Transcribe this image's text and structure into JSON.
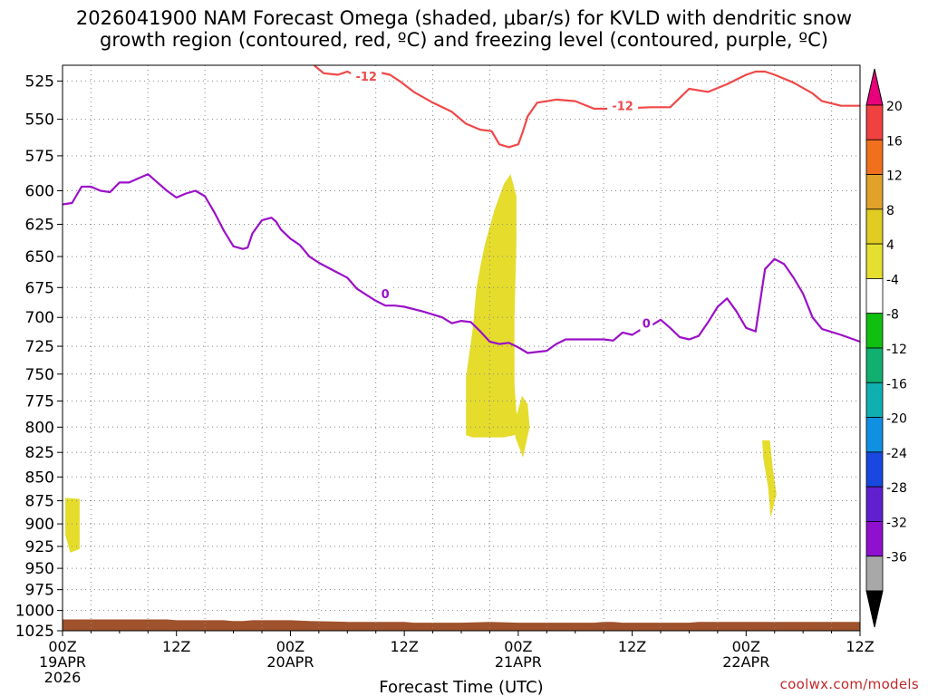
{
  "title_line1": "2026041900 NAM Forecast Omega (shaded, μbar/s) for KVLD with dendritic snow",
  "title_line2": "growth region (contoured, red, ºC) and freezing level (contoured, purple, ºC)",
  "credit": "coolwx.com/models",
  "chart_data": {
    "type": "line",
    "xlabel": "Forecast Time (UTC)",
    "x_unit": "forecast hour",
    "xlim": [
      0,
      84
    ],
    "ylim": [
      1025,
      515
    ],
    "y_scale": "log",
    "x_ticks": [
      {
        "hour": 0,
        "lines": [
          "00Z",
          "19APR",
          "2026"
        ]
      },
      {
        "hour": 12,
        "lines": [
          "12Z"
        ]
      },
      {
        "hour": 24,
        "lines": [
          "00Z",
          "20APR"
        ]
      },
      {
        "hour": 36,
        "lines": [
          "12Z"
        ]
      },
      {
        "hour": 48,
        "lines": [
          "00Z",
          "21APR"
        ]
      },
      {
        "hour": 60,
        "lines": [
          "12Z"
        ]
      },
      {
        "hour": 72,
        "lines": [
          "00Z",
          "22APR"
        ]
      },
      {
        "hour": 84,
        "lines": [
          "12Z"
        ]
      }
    ],
    "y_ticks": [
      525,
      550,
      575,
      600,
      625,
      650,
      675,
      700,
      725,
      750,
      775,
      800,
      825,
      850,
      875,
      900,
      925,
      950,
      975,
      1000,
      1025
    ],
    "grid": true,
    "series": [
      {
        "name": "-12",
        "color": "#f04848",
        "points": [
          [
            26.5,
            515
          ],
          [
            27.5,
            520
          ],
          [
            29,
            521
          ],
          [
            30,
            519
          ],
          [
            31,
            522
          ],
          [
            32,
            521
          ],
          [
            33,
            519
          ],
          [
            34.5,
            521
          ],
          [
            35.5,
            525
          ],
          [
            37,
            532
          ],
          [
            39,
            539
          ],
          [
            41,
            545
          ],
          [
            42.5,
            553
          ],
          [
            44,
            557
          ],
          [
            45.2,
            558
          ],
          [
            46,
            567
          ],
          [
            47,
            569
          ],
          [
            48,
            567
          ],
          [
            48.5,
            558
          ],
          [
            49,
            548
          ],
          [
            50,
            539
          ],
          [
            52,
            537
          ],
          [
            54,
            538
          ],
          [
            56,
            543
          ],
          [
            58,
            543
          ],
          [
            62,
            542
          ],
          [
            64,
            542
          ],
          [
            65,
            536
          ],
          [
            66,
            530
          ],
          [
            68,
            532
          ],
          [
            70,
            527
          ],
          [
            72,
            521
          ],
          [
            73,
            519
          ],
          [
            74,
            519
          ],
          [
            75,
            521
          ],
          [
            77,
            526
          ],
          [
            79,
            533
          ],
          [
            80,
            538
          ],
          [
            82,
            541
          ],
          [
            84,
            541
          ]
        ]
      },
      {
        "name": "0",
        "color": "#9b10c8",
        "points": [
          [
            0,
            610
          ],
          [
            1,
            609
          ],
          [
            2,
            597
          ],
          [
            3,
            597
          ],
          [
            4,
            600
          ],
          [
            5,
            601
          ],
          [
            6,
            594
          ],
          [
            7,
            594
          ],
          [
            8,
            591
          ],
          [
            9,
            588
          ],
          [
            10,
            594
          ],
          [
            11,
            600
          ],
          [
            12,
            605
          ],
          [
            13,
            602
          ],
          [
            14,
            600
          ],
          [
            15,
            604
          ],
          [
            16,
            616
          ],
          [
            17,
            630
          ],
          [
            18,
            642
          ],
          [
            19,
            644
          ],
          [
            19.5,
            643
          ],
          [
            20,
            632
          ],
          [
            21,
            622
          ],
          [
            22,
            620
          ],
          [
            22.5,
            623
          ],
          [
            23,
            629
          ],
          [
            24,
            636
          ],
          [
            25,
            641
          ],
          [
            26,
            650
          ],
          [
            27,
            655
          ],
          [
            28,
            659
          ],
          [
            29,
            663
          ],
          [
            30,
            667
          ],
          [
            31,
            676
          ],
          [
            32,
            681
          ],
          [
            33,
            686
          ],
          [
            34,
            690
          ],
          [
            35,
            690
          ],
          [
            36,
            691
          ],
          [
            38,
            695
          ],
          [
            40,
            700
          ],
          [
            41,
            705
          ],
          [
            42,
            703
          ],
          [
            43,
            704
          ],
          [
            44,
            712
          ],
          [
            45,
            721
          ],
          [
            46,
            723
          ],
          [
            47,
            722
          ],
          [
            48,
            726
          ],
          [
            49,
            731
          ],
          [
            51,
            729
          ],
          [
            52,
            723
          ],
          [
            53,
            719
          ],
          [
            55,
            719
          ],
          [
            57,
            719
          ],
          [
            58,
            720
          ],
          [
            59,
            713
          ],
          [
            60,
            715
          ],
          [
            61,
            710
          ],
          [
            62,
            707
          ],
          [
            63,
            702
          ],
          [
            64,
            709
          ],
          [
            65,
            717
          ],
          [
            66,
            719
          ],
          [
            67,
            716
          ],
          [
            68,
            704
          ],
          [
            69,
            691
          ],
          [
            70,
            684
          ],
          [
            71,
            695
          ],
          [
            72,
            709
          ],
          [
            73,
            712
          ],
          [
            74,
            660
          ],
          [
            75,
            652
          ],
          [
            76,
            656
          ],
          [
            77,
            667
          ],
          [
            78,
            680
          ],
          [
            79,
            700
          ],
          [
            80,
            710
          ],
          [
            82,
            715
          ],
          [
            84,
            721
          ]
        ]
      }
    ],
    "contour_labels": [
      {
        "text": "-12",
        "hour": 32,
        "pressure": 522
      },
      {
        "text": "-12",
        "hour": 59,
        "pressure": 541
      },
      {
        "text": "0",
        "hour": 34,
        "pressure": 680
      },
      {
        "text": "0",
        "hour": 61.5,
        "pressure": 705
      }
    ],
    "shaded_regions": [
      {
        "label": "4 to 8",
        "color": "#e5dc2c",
        "points": [
          [
            0.3,
            872
          ],
          [
            1.8,
            873
          ],
          [
            1.8,
            928
          ],
          [
            0.8,
            932
          ],
          [
            0.3,
            912
          ]
        ]
      },
      {
        "label": "4 to 8",
        "color": "#e5dc2c",
        "points": [
          [
            42.5,
            753
          ],
          [
            43.2,
            710
          ],
          [
            43.6,
            675
          ],
          [
            44,
            658
          ],
          [
            44.5,
            640
          ],
          [
            45.5,
            614
          ],
          [
            46.5,
            595
          ],
          [
            47.2,
            588
          ],
          [
            47.8,
            604
          ],
          [
            47.8,
            640
          ],
          [
            47.6,
            700
          ],
          [
            47.6,
            760
          ],
          [
            47.8,
            785
          ],
          [
            48.2,
            802
          ],
          [
            48.5,
            806
          ],
          [
            46.5,
            810
          ],
          [
            43.2,
            810
          ],
          [
            42.5,
            808
          ]
        ]
      },
      {
        "label": "4 to 8",
        "color": "#e5dc2c",
        "points": [
          [
            47.7,
            793
          ],
          [
            48.4,
            770
          ],
          [
            49,
            778
          ],
          [
            49.2,
            800
          ],
          [
            48.5,
            830
          ],
          [
            47.7,
            810
          ]
        ]
      },
      {
        "label": "4 to 8",
        "color": "#e5dc2c",
        "points": [
          [
            73.7,
            813
          ],
          [
            74.5,
            813
          ],
          [
            74.8,
            840
          ],
          [
            75.2,
            868
          ],
          [
            74.6,
            893
          ],
          [
            74.3,
            860
          ],
          [
            73.8,
            830
          ]
        ]
      }
    ],
    "terrain": {
      "color": "#a0522d",
      "points": [
        [
          0,
          1011
        ],
        [
          6,
          1011
        ],
        [
          11,
          1011
        ],
        [
          12,
          1012
        ],
        [
          17,
          1012
        ],
        [
          18,
          1013
        ],
        [
          19,
          1013
        ],
        [
          20,
          1012
        ],
        [
          24,
          1012
        ],
        [
          26,
          1013
        ],
        [
          30,
          1014
        ],
        [
          34,
          1014
        ],
        [
          36,
          1014
        ],
        [
          37,
          1015
        ],
        [
          40,
          1015
        ],
        [
          42,
          1015
        ],
        [
          45,
          1014
        ],
        [
          48,
          1015
        ],
        [
          51,
          1015
        ],
        [
          55,
          1015
        ],
        [
          56,
          1015
        ],
        [
          57,
          1014
        ],
        [
          58,
          1014
        ],
        [
          59,
          1015
        ],
        [
          62,
          1015
        ],
        [
          66,
          1015
        ],
        [
          67,
          1014
        ],
        [
          70,
          1014
        ],
        [
          74,
          1014
        ],
        [
          84,
          1014
        ]
      ]
    },
    "legend": {
      "placement": "right",
      "labels": [
        "20",
        "16",
        "12",
        "8",
        "4",
        "-4",
        "-8",
        "-12",
        "-16",
        "-20",
        "-24",
        "-28",
        "-32",
        "-36"
      ],
      "colors": [
        "#e8007a",
        "#f04040",
        "#f0701e",
        "#e0a22a",
        "#e0cc22",
        "#e5e030",
        "#ffffff",
        "#10c010",
        "#10b070",
        "#10b0b0",
        "#1090e0",
        "#1848e0",
        "#6020d0",
        "#9010d0",
        "#a8a8a8",
        "#000000"
      ]
    }
  }
}
